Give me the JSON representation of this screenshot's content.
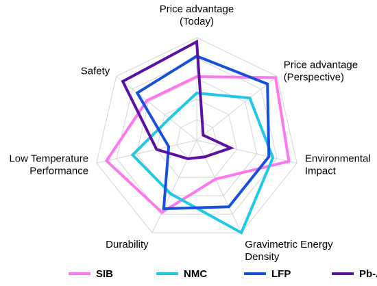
{
  "chart_data": {
    "type": "radar",
    "title": "",
    "axes": [
      [
        "Price advantage",
        "(Today)"
      ],
      [
        "Price advantage",
        "(Perspective)"
      ],
      [
        "Environmental",
        "Impact"
      ],
      [
        "Gravimetric Energy",
        "Density"
      ],
      [
        "Durability"
      ],
      [
        "Low Temperature",
        "Performance"
      ],
      [
        "Safety"
      ]
    ],
    "range": [
      0,
      5
    ],
    "grid_levels": 5,
    "grid": true,
    "legend_position": "bottom",
    "series": [
      {
        "name": "SIB",
        "color": "#ff77ee",
        "values": [
          3.1,
          4.9,
          4.6,
          2.1,
          3.9,
          4.5,
          3.1
        ]
      },
      {
        "name": "NMC",
        "color": "#1ec8e6",
        "values": [
          2.3,
          3.3,
          3.8,
          5.0,
          2.9,
          3.2,
          1.7
        ]
      },
      {
        "name": "LFP",
        "color": "#1450dc",
        "values": [
          4.1,
          4.4,
          3.6,
          3.6,
          3.7,
          1.4,
          3.7
        ]
      },
      {
        "name": "Pb-A",
        "color": "#5a10a0",
        "values": [
          4.8,
          0.4,
          1.7,
          0.9,
          1.0,
          2.0,
          4.6
        ]
      }
    ]
  }
}
